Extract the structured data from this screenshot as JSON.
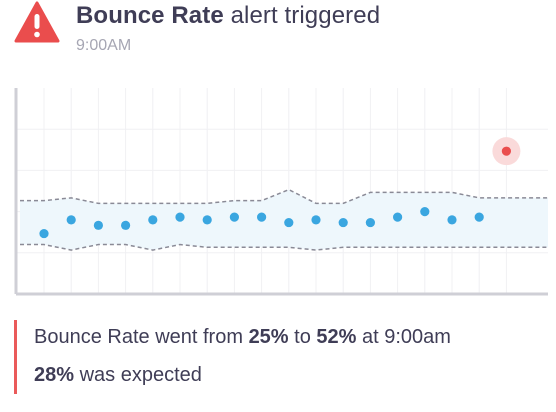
{
  "alert": {
    "metric": "Bounce Rate",
    "title_suffix": " alert triggered",
    "time": "9:00AM",
    "icon": "warning-triangle-icon"
  },
  "summary": {
    "line1_prefix": "Bounce Rate went from ",
    "from_value": "25%",
    "to_word": " to ",
    "to_value": "52%",
    "line1_suffix": " at 9:00am",
    "expected_value": "28%",
    "expected_suffix": " was expected"
  },
  "colors": {
    "alert_red": "#ea4d4d",
    "text_dark": "#3f3d56",
    "text_muted": "#a6a6b3",
    "point_blue": "#3aa6e0",
    "band_fill": "#eef7fc",
    "band_stroke": "#8a8a96",
    "anomaly_halo": "#fadada",
    "axis": "#cfcfd6",
    "grid": "#f0f0f3"
  },
  "chart_data": {
    "type": "scatter",
    "x": [
      1,
      2,
      3,
      4,
      5,
      6,
      7,
      8,
      9,
      10,
      11,
      12,
      13,
      14,
      15,
      16,
      17,
      18
    ],
    "values": [
      22,
      27,
      25,
      25,
      27,
      28,
      27,
      28,
      28,
      26,
      27,
      26,
      26,
      28,
      30,
      27,
      28,
      null
    ],
    "expected_band": {
      "upper": [
        34,
        35,
        33,
        33,
        33,
        33,
        33,
        34,
        34,
        38,
        33,
        33,
        37,
        37,
        37,
        37,
        35,
        35
      ],
      "lower": [
        18,
        16,
        18,
        18,
        16,
        18,
        17,
        17,
        17,
        17,
        16,
        17,
        17,
        17,
        17,
        17,
        17,
        17
      ]
    },
    "anomaly": {
      "x": 18,
      "value": 52
    },
    "ylim": [
      0,
      75
    ],
    "grid": true,
    "title": "",
    "xlabel": "",
    "ylabel": ""
  }
}
